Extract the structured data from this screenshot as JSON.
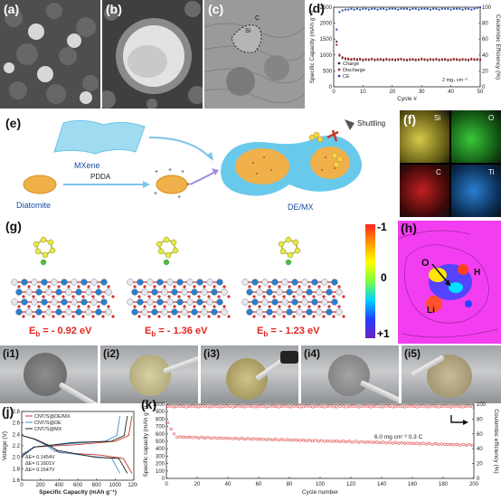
{
  "panels": {
    "a": "(a)",
    "b": "(b)",
    "c": "(c)",
    "d": "(d)",
    "e": "(e)",
    "f": "(f)",
    "g": "(g)",
    "h": "(h)",
    "i1": "(i1)",
    "i2": "(i2)",
    "i3": "(i3)",
    "i4": "(i4)",
    "i5": "(i5)",
    "j": "(j)",
    "k": "(k)"
  },
  "panel_c": {
    "label_c": "C",
    "label_si": "Si"
  },
  "panel_e": {
    "mxene": "MXene",
    "diatomite": "Diatomite",
    "pdda": "PDDA",
    "product": "DE/MX",
    "shuttling": "Shuttling"
  },
  "panel_f": {
    "si": "Si",
    "o": "O",
    "c": "C",
    "ti": "Ti"
  },
  "panel_g": {
    "energies": [
      "- 0.92 eV",
      "- 1.36 eV",
      "- 1.23 eV"
    ],
    "eb": "E",
    "eb_sub": "b",
    "eq": " = "
  },
  "panel_h": {
    "scale_top": "-1",
    "scale_mid": "0",
    "scale_bottom": "+1",
    "atom_o": "O",
    "atom_h": "H",
    "atom_li": "Li"
  },
  "chart_data": [
    {
      "panel": "d",
      "type": "scatter",
      "xlabel": "Cycle #",
      "ylabel": "Specific Capacity (mAh g⁻¹)",
      "y2label": "Coulombic Efficiency (%)",
      "xlim": [
        0,
        50
      ],
      "ylim": [
        0,
        2500
      ],
      "y2lim": [
        0,
        100
      ],
      "xticks": [
        "0",
        "10",
        "20",
        "30",
        "40",
        "50"
      ],
      "yticks": [
        "0",
        "500",
        "1000",
        "1500",
        "2000",
        "2500"
      ],
      "y2ticks": [
        "0",
        "20",
        "40",
        "60",
        "80",
        "100"
      ],
      "annotation": "2 mgₛ cm⁻²",
      "legend": "inside-lower-left",
      "series": [
        {
          "name": "Charge",
          "color": "#333333"
        },
        {
          "name": "Discharge",
          "color": "#b22222"
        },
        {
          "name": "CE",
          "color": "#2b4fa8"
        }
      ],
      "x": [
        1,
        2,
        3,
        4,
        5,
        6,
        7,
        8,
        9,
        10,
        11,
        12,
        13,
        14,
        15,
        16,
        17,
        18,
        19,
        20,
        21,
        22,
        23,
        24,
        25,
        26,
        27,
        28,
        29,
        30,
        31,
        32,
        33,
        34,
        35,
        36,
        37,
        38,
        39,
        40,
        41,
        42,
        43,
        44,
        45,
        46,
        47,
        48,
        49,
        50
      ],
      "charge": [
        1420,
        980,
        900,
        870,
        860,
        850,
        860,
        840,
        855,
        830,
        850,
        840,
        860,
        835,
        845,
        850,
        830,
        855,
        840,
        845,
        835,
        850,
        860,
        840,
        830,
        845,
        850,
        835,
        840,
        860,
        845,
        830,
        850,
        840,
        855,
        835,
        845,
        850,
        830,
        840,
        855,
        845,
        835,
        850,
        840,
        830,
        860,
        845,
        850,
        840
      ],
      "discharge": [
        1320,
        1010,
        930,
        900,
        890,
        875,
        885,
        870,
        880,
        860,
        875,
        865,
        885,
        860,
        870,
        875,
        855,
        880,
        865,
        870,
        860,
        875,
        885,
        865,
        855,
        870,
        875,
        860,
        865,
        885,
        870,
        855,
        875,
        865,
        880,
        860,
        870,
        875,
        855,
        865,
        880,
        870,
        860,
        875,
        865,
        855,
        885,
        870,
        875,
        865
      ],
      "ce": [
        72,
        94,
        96,
        97,
        97,
        98,
        97,
        98,
        97,
        98,
        98,
        97,
        98,
        98,
        97,
        98,
        98,
        97,
        98,
        98,
        98,
        97,
        98,
        98,
        98,
        97,
        98,
        98,
        97,
        98,
        98,
        98,
        97,
        98,
        98,
        97,
        98,
        98,
        98,
        97,
        98,
        98,
        98,
        97,
        98,
        98,
        97,
        98,
        99,
        100
      ]
    },
    {
      "panel": "j",
      "type": "line",
      "xlabel": "Specific Capacity (mAh g⁻¹)",
      "ylabel": "Voltage (V)",
      "xlim": [
        0,
        1200
      ],
      "ylim": [
        1.6,
        2.8
      ],
      "xticks": [
        "0",
        "200",
        "400",
        "600",
        "800",
        "1000",
        "1200"
      ],
      "yticks": [
        "1.6",
        "1.8",
        "2.0",
        "2.2",
        "2.4",
        "2.6",
        "2.8"
      ],
      "legend": "top-left",
      "series": [
        {
          "name": "CNT/S@DE/MX",
          "color": "#c0392b",
          "capacity": 1180
        },
        {
          "name": "CNT/S@DE",
          "color": "#3a8fd0",
          "capacity": 1050
        },
        {
          "name": "CNT/S@MX",
          "color": "#222222",
          "capacity": 1130
        }
      ],
      "annotations": [
        "ΔE= 0.1454V",
        "ΔE= 0.1601V",
        "ΔE= 0.1547V"
      ]
    },
    {
      "panel": "k",
      "type": "scatter",
      "xlabel": "Cycle number",
      "ylabel": "Specific capacity (mAh g⁻¹)",
      "y2label": "Coulombic efficiency (%)",
      "xlim": [
        0,
        200
      ],
      "ylim": [
        0,
        1000
      ],
      "y2lim": [
        0,
        100
      ],
      "xticks": [
        "0",
        "20",
        "40",
        "60",
        "80",
        "100",
        "120",
        "140",
        "160",
        "180",
        "200"
      ],
      "yticks": [
        "0",
        "100",
        "200",
        "300",
        "400",
        "500",
        "600",
        "700",
        "800",
        "900",
        "1000"
      ],
      "y2ticks": [
        "0",
        "20",
        "40",
        "60",
        "80",
        "100"
      ],
      "annotation": "6.0 mg cm⁻² 0.3 C",
      "capacity": {
        "start": 780,
        "after_activation": 560,
        "end": 450
      },
      "ce": {
        "value": 97
      }
    }
  ],
  "colors": {
    "accent_red": "#e1251b",
    "axis_blue": "#2b4fa8",
    "mxene_blue": "#7fd3ef",
    "diatomite_gold": "#e6a63a"
  }
}
